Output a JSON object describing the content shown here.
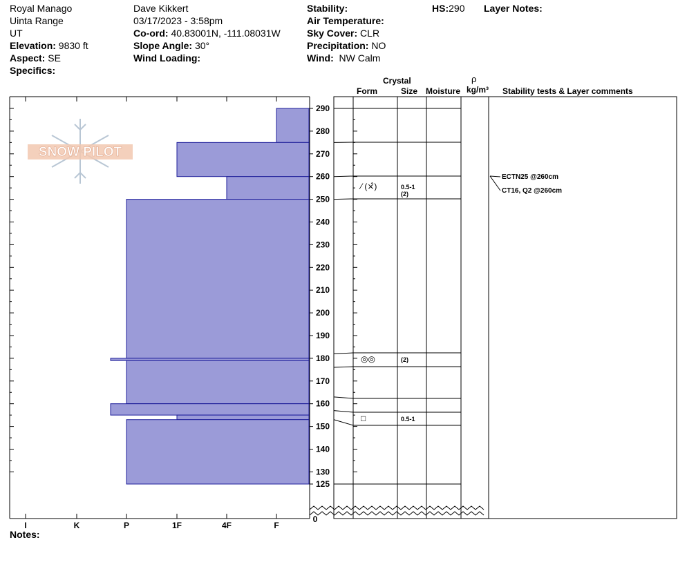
{
  "header": {
    "location": "Royal Manago",
    "range": "Uinta Range",
    "state": "UT",
    "elevation_label": "Elevation:",
    "elevation_value": "9830 ft",
    "aspect_label": "Aspect:",
    "aspect_value": "SE",
    "specifics_label": "Specifics:",
    "observer": "Dave Kikkert",
    "datetime": "03/17/2023 - 3:58pm",
    "coord_label": "Co-ord:",
    "coord_value": "40.83001N, -111.08031W",
    "slope_label": "Slope Angle:",
    "slope_value": "30°",
    "wind_loading_label": "Wind Loading:",
    "stability_label": "Stability:",
    "air_temp_label": "Air Temperature:",
    "sky_label": "Sky Cover:",
    "sky_value": "CLR",
    "precip_label": "Precipitation:",
    "precip_value": "NO",
    "wind_label": "Wind:",
    "wind_value": "NW Calm",
    "hs_label": "HS:",
    "hs_value": "290",
    "layer_notes_label": "Layer Notes:",
    "notes_label": "Notes:"
  },
  "columns": {
    "crystal": "Crystal",
    "form": "Form",
    "size": "Size",
    "moisture": "Moisture",
    "rho": "ρ",
    "density": "kg/m³",
    "stability": "Stability tests & Layer comments"
  },
  "logo_text": "SNOW PILOT",
  "chart_data": {
    "type": "bar",
    "hardness_ticks": [
      "I",
      "K",
      "P",
      "1F",
      "4F",
      "F"
    ],
    "height_ticks": [
      290,
      280,
      270,
      260,
      250,
      240,
      230,
      220,
      210,
      200,
      190,
      180,
      170,
      160,
      150,
      140,
      130,
      125
    ],
    "zero_label": "0",
    "layer_boundaries": [
      290,
      275,
      260,
      250,
      182,
      176,
      163,
      157,
      153,
      125
    ],
    "hardness_layers": [
      {
        "top": 290,
        "bottom": 275,
        "hardness": "F"
      },
      {
        "top": 275,
        "bottom": 260,
        "hardness": "1F"
      },
      {
        "top": 260,
        "bottom": 250,
        "hardness": "4F"
      },
      {
        "top": 250,
        "bottom": 180,
        "hardness": "P"
      },
      {
        "top": 180,
        "bottom": 179,
        "hardness": "P-"
      },
      {
        "top": 179,
        "bottom": 160,
        "hardness": "P"
      },
      {
        "top": 160,
        "bottom": 155,
        "hardness": "P-"
      },
      {
        "top": 155,
        "bottom": 153,
        "hardness": "1F"
      },
      {
        "top": 153,
        "bottom": 125,
        "hardness": "P"
      }
    ],
    "layer_details": [
      {
        "height": 255,
        "form": "⁄ (⨯̂)",
        "size": "0.5-1",
        "size2": "(2)"
      },
      {
        "height": 179,
        "form": "◎◎",
        "size": "(2)"
      },
      {
        "height": 155,
        "form": "□",
        "size": "0.5-1"
      }
    ],
    "stability_tests": [
      {
        "text": "ECTN25 @260cm",
        "height": 260
      },
      {
        "text": "CT16, Q2 @260cm",
        "height": 260
      }
    ]
  }
}
